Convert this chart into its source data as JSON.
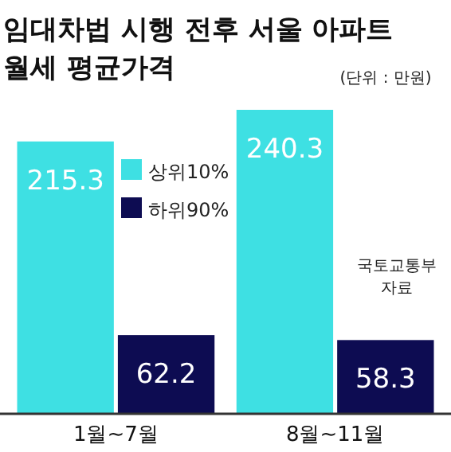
{
  "chart_data": {
    "type": "bar",
    "title": "임대차법 시행 전후 서울 아파트 월세 평균가격",
    "subtitle": "(단위 : 만원)",
    "categories": [
      "1월~7월",
      "8월~11월"
    ],
    "series": [
      {
        "name": "상위10%",
        "color": "#3ee0e3",
        "values": [
          215.3,
          240.3
        ]
      },
      {
        "name": "하위90%",
        "color": "#0d0c52",
        "values": [
          62.2,
          58.3
        ]
      }
    ],
    "data_labels": true,
    "legend": "top",
    "annotations": [
      "국토교통부 자료"
    ]
  }
}
